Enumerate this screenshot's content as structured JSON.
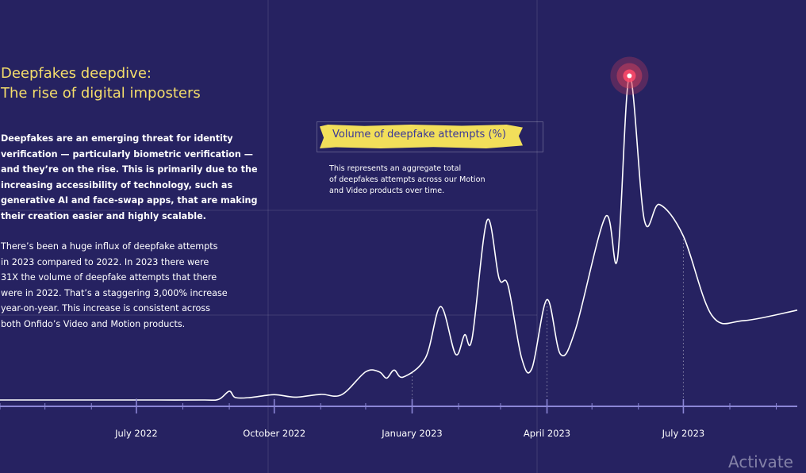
{
  "header": {
    "title_line1": "Deepfakes deepdive:",
    "title_line2": "The rise of digital imposters"
  },
  "intro_bold": [
    "Deepfakes are an emerging threat for identity",
    "verification — particularly biometric verification —",
    "and they’re on the rise. This is primarily due to the",
    "increasing accessibility of technology, such as",
    "generative AI and face-swap apps, that are making",
    "their creation easier and highly scalable."
  ],
  "intro_regular": [
    "There’s been a huge influx of deepfake attempts",
    "in 2023 compared to 2022. In 2023 there were",
    "31X the volume of deepfake attempts that there",
    "were in 2022. That’s a staggering 3,000% increase",
    "year-on-year. This increase is consistent across",
    "both Onfido’s Video and Motion products."
  ],
  "legend": {
    "label": "Volume of deepfake attempts (%)",
    "note": [
      "This represents an aggregate total",
      "of deepfakes attempts across our Motion",
      "and Video products over time."
    ]
  },
  "watermark": "Activate",
  "colors": {
    "background": "#262261",
    "line": "#ffffff",
    "title": "#f5de6b",
    "highlight": "#f2df5a",
    "legend_text": "#3a3798",
    "axis": "#8b86d6",
    "peak_marker": "#e0425a"
  },
  "chart_data": {
    "type": "line",
    "title": "Volume of deepfake attempts (%)",
    "xlabel": "",
    "ylabel": "",
    "grid": true,
    "x_ticks": [
      "July 2022",
      "October 2022",
      "January 2023",
      "April 2023",
      "July 2023"
    ],
    "ylim": [
      0,
      100
    ],
    "xlim": [
      "2022-04-01",
      "2023-09-15"
    ],
    "series": [
      {
        "values": [
          [
            "2022-04-01",
            0.0
          ],
          [
            "2022-06-15",
            0.0
          ],
          [
            "2022-07-15",
            0.0
          ],
          [
            "2022-08-15",
            0.0
          ],
          [
            "2022-08-25",
            0.2
          ],
          [
            "2022-09-01",
            2.5
          ],
          [
            "2022-09-05",
            0.7
          ],
          [
            "2022-09-15",
            0.7
          ],
          [
            "2022-10-01",
            1.5
          ],
          [
            "2022-10-15",
            0.8
          ],
          [
            "2022-11-01",
            1.6
          ],
          [
            "2022-11-15",
            1.5
          ],
          [
            "2022-12-01",
            8.0
          ],
          [
            "2022-12-10",
            8.0
          ],
          [
            "2022-12-15",
            6.2
          ],
          [
            "2022-12-20",
            8.5
          ],
          [
            "2022-12-26",
            6.5
          ],
          [
            "2023-01-10",
            12.0
          ],
          [
            "2023-01-20",
            26.5
          ],
          [
            "2023-01-30",
            13.0
          ],
          [
            "2023-02-05",
            18.5
          ],
          [
            "2023-02-10",
            17.5
          ],
          [
            "2023-02-20",
            51.0
          ],
          [
            "2023-02-28",
            34.5
          ],
          [
            "2023-03-06",
            32.5
          ],
          [
            "2023-03-15",
            12.0
          ],
          [
            "2023-03-22",
            9.0
          ],
          [
            "2023-04-01",
            28.5
          ],
          [
            "2023-04-10",
            13.0
          ],
          [
            "2023-04-20",
            20.0
          ],
          [
            "2023-05-10",
            52.0
          ],
          [
            "2023-05-18",
            40.0
          ],
          [
            "2023-05-26",
            92.0
          ],
          [
            "2023-06-05",
            51.0
          ],
          [
            "2023-06-15",
            55.5
          ],
          [
            "2023-07-01",
            46.5
          ],
          [
            "2023-07-20",
            24.0
          ],
          [
            "2023-08-10",
            22.5
          ],
          [
            "2023-09-15",
            25.5
          ]
        ]
      }
    ],
    "peak_highlight": "2023-05-26"
  }
}
